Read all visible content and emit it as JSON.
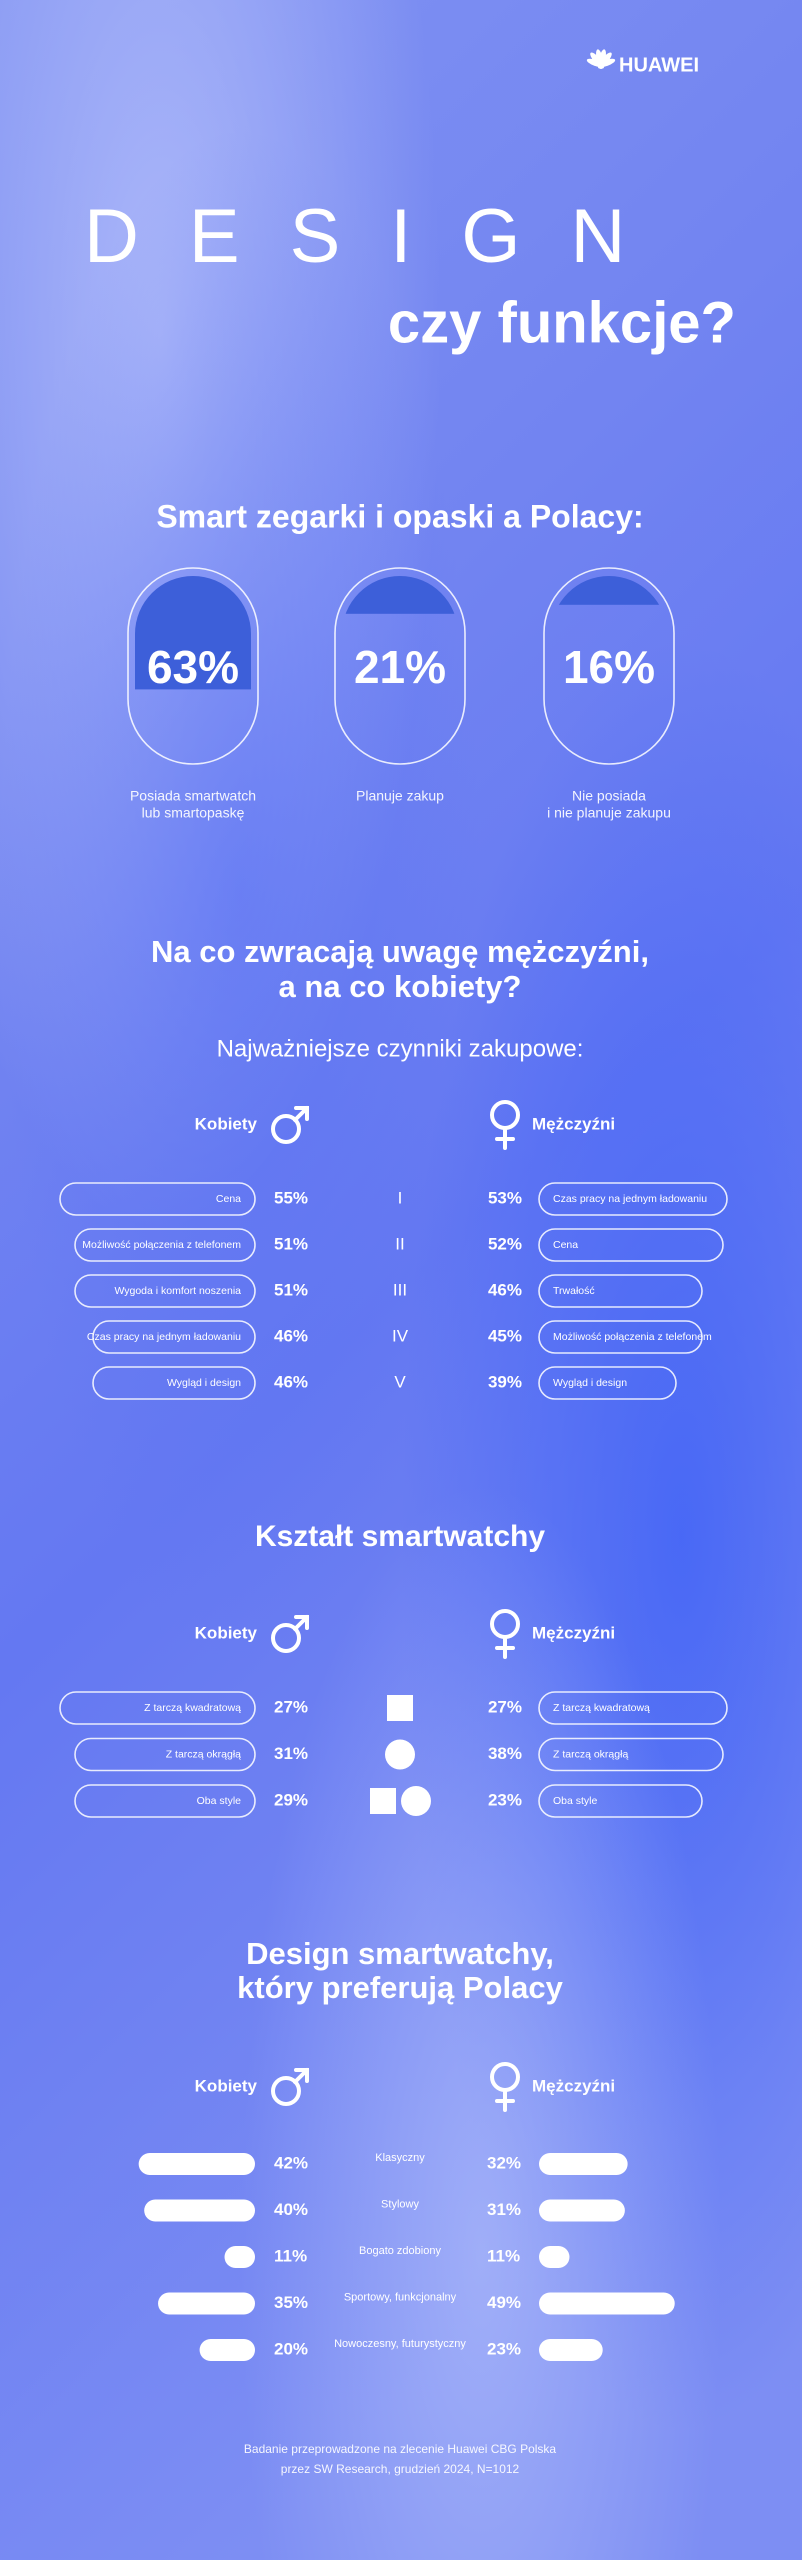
{
  "brand": "HUAWEI",
  "title": "DESIGN",
  "subtitle": "czy funkcje?",
  "ownership": {
    "title": "Smart zegarki i opaski a Polacy:",
    "items": [
      {
        "value": 63,
        "label": "63%",
        "caption": [
          "Posiada smartwatch",
          "lub smartopaskę"
        ]
      },
      {
        "value": 21,
        "label": "21%",
        "caption": [
          "Planuje zakup"
        ]
      },
      {
        "value": 16,
        "label": "16%",
        "caption": [
          "Nie posiada",
          "i nie planuje zakupu"
        ]
      }
    ]
  },
  "factors": {
    "title": [
      "Na co zwracają uwagę mężczyźni,",
      "a na co kobiety?"
    ],
    "subtitle": "Najważniejsze czynniki zakupowe:",
    "women_label": "Kobiety",
    "men_label": "Mężczyźni",
    "ranks": [
      "I",
      "II",
      "III",
      "IV",
      "V"
    ],
    "women": [
      {
        "name": "Cena",
        "value": 55,
        "label": "55%"
      },
      {
        "name": "Możliwość połączenia z telefonem",
        "value": 51,
        "label": "51%"
      },
      {
        "name": "Wygoda i komfort noszenia",
        "value": 51,
        "label": "51%"
      },
      {
        "name": "Czas pracy na jednym ładowaniu",
        "value": 46,
        "label": "46%"
      },
      {
        "name": "Wygląd i design",
        "value": 46,
        "label": "46%"
      }
    ],
    "men": [
      {
        "name": "Czas pracy na jednym ładowaniu",
        "value": 53,
        "label": "53%"
      },
      {
        "name": "Cena",
        "value": 52,
        "label": "52%"
      },
      {
        "name": "Trwałość",
        "value": 46,
        "label": "46%"
      },
      {
        "name": "Możliwość połączenia z telefonem",
        "value": 45,
        "label": "45%"
      },
      {
        "name": "Wygląd i design",
        "value": 39,
        "label": "39%"
      }
    ]
  },
  "shape": {
    "title": "Kształt smartwatchy",
    "women_label": "Kobiety",
    "men_label": "Mężczyźni",
    "women": [
      {
        "name": "Z tarczą kwadratową",
        "value": 27,
        "label": "27%"
      },
      {
        "name": "Z tarczą okrągłą",
        "value": 31,
        "label": "31%"
      },
      {
        "name": "Oba style",
        "value": 29,
        "label": "29%"
      }
    ],
    "men": [
      {
        "name": "Z tarczą kwadratową",
        "value": 27,
        "label": "27%"
      },
      {
        "name": "Z tarczą okrągłą",
        "value": 38,
        "label": "38%"
      },
      {
        "name": "Oba style",
        "value": 23,
        "label": "23%"
      }
    ]
  },
  "design": {
    "title": [
      "Design smartwatchy,",
      "który preferują Polacy"
    ],
    "women_label": "Kobiety",
    "men_label": "Mężczyźni",
    "categories": [
      "Klasyczny",
      "Stylowy",
      "Bogato zdobiony",
      "Sportowy, funkcjonalny",
      "Nowoczesny, futurystyczny"
    ],
    "women": [
      {
        "value": 42,
        "label": "42%"
      },
      {
        "value": 40,
        "label": "40%"
      },
      {
        "value": 11,
        "label": "11%"
      },
      {
        "value": 35,
        "label": "35%"
      },
      {
        "value": 20,
        "label": "20%"
      }
    ],
    "men": [
      {
        "value": 32,
        "label": "32%"
      },
      {
        "value": 31,
        "label": "31%"
      },
      {
        "value": 11,
        "label": "11%"
      },
      {
        "value": 49,
        "label": "49%"
      },
      {
        "value": 23,
        "label": "23%"
      }
    ]
  },
  "footer": [
    "Badanie przeprowadzone na zlecenie Huawei CBG Polska",
    "przez SW Research, grudzień 2024, N=1012"
  ]
}
